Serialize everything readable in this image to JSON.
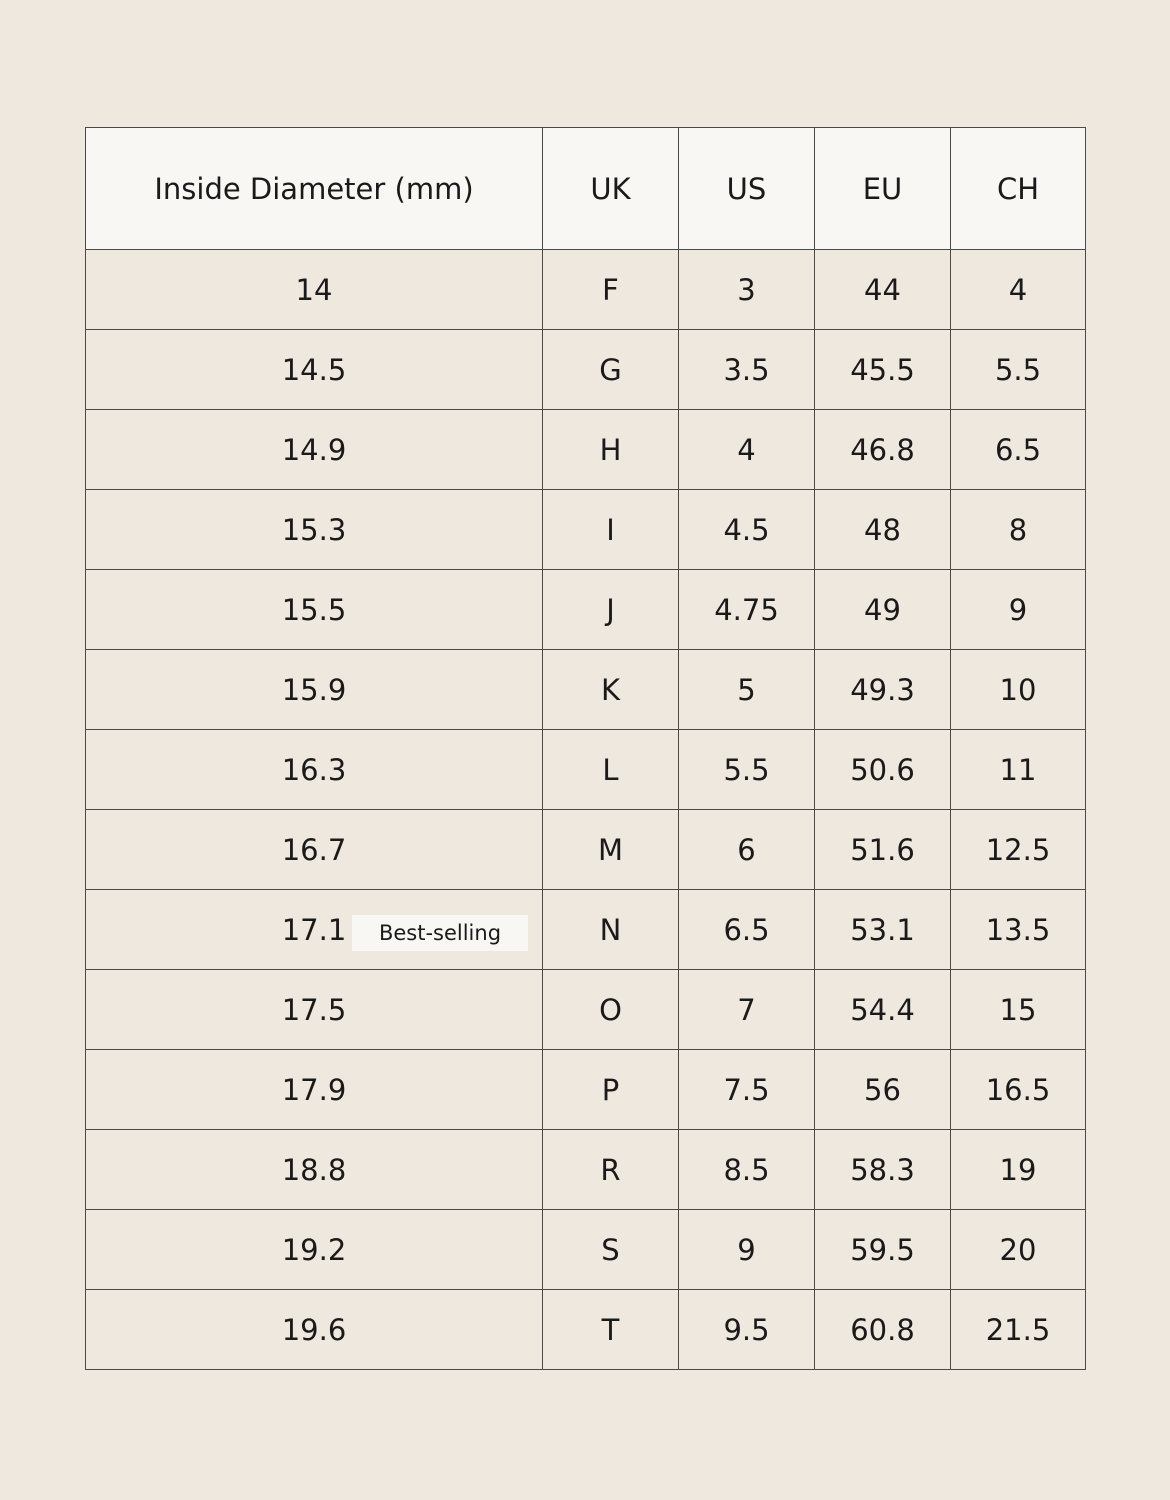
{
  "table": {
    "header": [
      "Inside Diameter (mm)",
      "UK",
      "US",
      "EU",
      "CH"
    ],
    "rows": [
      {
        "cells": [
          "14",
          "F",
          "3",
          "44",
          "4"
        ]
      },
      {
        "cells": [
          "14.5",
          "G",
          "3.5",
          "45.5",
          "5.5"
        ]
      },
      {
        "cells": [
          "14.9",
          "H",
          "4",
          "46.8",
          "6.5"
        ]
      },
      {
        "cells": [
          "15.3",
          "I",
          "4.5",
          "48",
          "8"
        ]
      },
      {
        "cells": [
          "15.5",
          "J",
          "4.75",
          "49",
          "9"
        ]
      },
      {
        "cells": [
          "15.9",
          "K",
          "5",
          "49.3",
          "10"
        ]
      },
      {
        "cells": [
          "16.3",
          "L",
          "5.5",
          "50.6",
          "11"
        ]
      },
      {
        "cells": [
          "16.7",
          "M",
          "6",
          "51.6",
          "12.5"
        ]
      },
      {
        "cells": [
          "17.1",
          "N",
          "6.5",
          "53.1",
          "13.5"
        ],
        "badge": "Best-selling"
      },
      {
        "cells": [
          "17.5",
          "O",
          "7",
          "54.4",
          "15"
        ]
      },
      {
        "cells": [
          "17.9",
          "P",
          "7.5",
          "56",
          "16.5"
        ]
      },
      {
        "cells": [
          "18.8",
          "R",
          "8.5",
          "58.3",
          "19"
        ]
      },
      {
        "cells": [
          "19.2",
          "S",
          "9",
          "59.5",
          "20"
        ]
      },
      {
        "cells": [
          "19.6",
          "T",
          "9.5",
          "60.8",
          "21.5"
        ]
      }
    ]
  }
}
